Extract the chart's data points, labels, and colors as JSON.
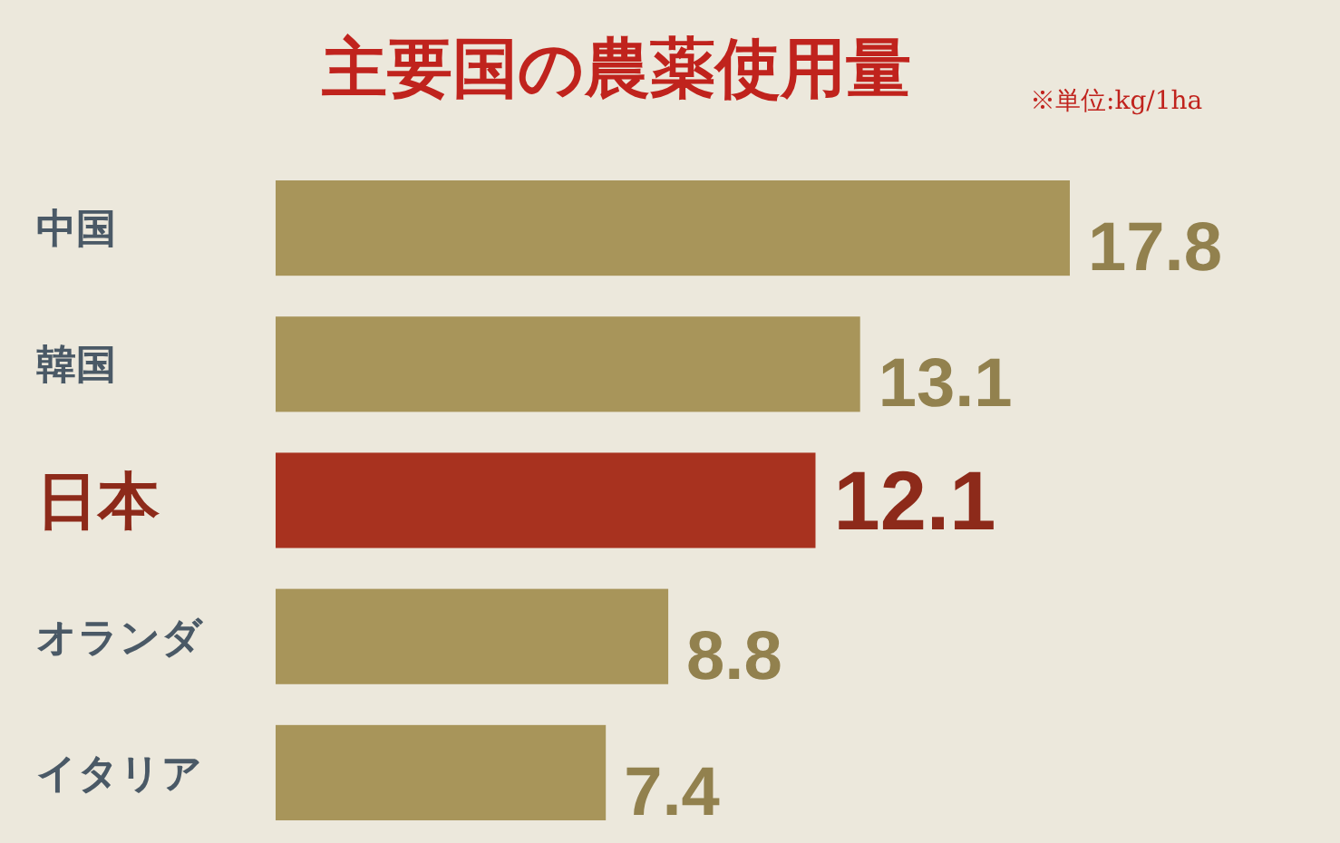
{
  "chart_data": {
    "type": "bar",
    "orientation": "horizontal",
    "title": "主要国の農薬使用量",
    "subtitle": "※単位:kg/1ha",
    "categories": [
      "中国",
      "韓国",
      "日本",
      "オランダ",
      "イタリア"
    ],
    "values": [
      17.8,
      13.1,
      12.1,
      8.8,
      7.4
    ],
    "colors": [
      "#a8955a",
      "#a8955a",
      "#a8321f",
      "#a8955a",
      "#a8955a"
    ],
    "data_labels": true
  }
}
